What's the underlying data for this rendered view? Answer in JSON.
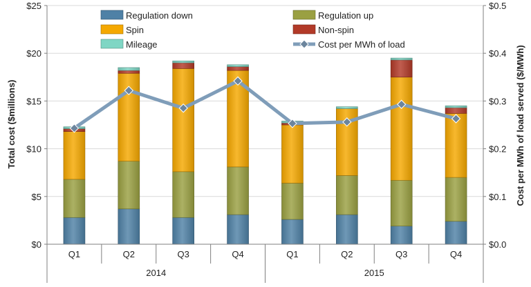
{
  "chart_data": {
    "type": "bar",
    "subtype": "stacked-bar-with-line-secondary-axis",
    "categories": [
      "Q1",
      "Q2",
      "Q3",
      "Q4",
      "Q1",
      "Q2",
      "Q3",
      "Q4"
    ],
    "groups": [
      {
        "label": "2014",
        "categories": [
          "Q1",
          "Q2",
          "Q3",
          "Q4"
        ]
      },
      {
        "label": "2015",
        "categories": [
          "Q1",
          "Q2",
          "Q3",
          "Q4"
        ]
      }
    ],
    "series": [
      {
        "name": "Regulation down",
        "color": "#4f81a6",
        "values": [
          2.8,
          3.7,
          2.8,
          3.1,
          2.6,
          3.1,
          1.9,
          2.4
        ]
      },
      {
        "name": "Regulation up",
        "color": "#9aa042",
        "values": [
          4.0,
          5.0,
          4.8,
          5.0,
          3.8,
          4.1,
          4.8,
          4.6
        ]
      },
      {
        "name": "Spin",
        "color": "#f5a800",
        "values": [
          5.0,
          9.2,
          10.8,
          10.1,
          6.1,
          7.0,
          10.8,
          6.7
        ]
      },
      {
        "name": "Non-spin",
        "color": "#b23a28",
        "values": [
          0.3,
          0.3,
          0.6,
          0.4,
          0.2,
          0.0,
          1.8,
          0.6
        ]
      },
      {
        "name": "Mileage",
        "color": "#7fd6c4",
        "values": [
          0.2,
          0.3,
          0.2,
          0.2,
          0.2,
          0.2,
          0.2,
          0.2
        ]
      }
    ],
    "line_series": {
      "name": "Cost per MWh of load",
      "axis": "right",
      "color": "#7f9db9",
      "values": [
        0.243,
        0.322,
        0.285,
        0.342,
        0.253,
        0.256,
        0.293,
        0.263
      ]
    },
    "ylabel": "Total cost ($millions)",
    "ylabel_right": "Cost per MWh of load served ($/MWh)",
    "ylim": [
      0,
      25
    ],
    "ylim_right": [
      0,
      0.5
    ],
    "yticks": [
      "$0",
      "$5",
      "$10",
      "$15",
      "$20",
      "$25"
    ],
    "yticks_right": [
      "$0.0",
      "$0.1",
      "$0.2",
      "$0.3",
      "$0.4",
      "$0.5"
    ],
    "grid": true,
    "legend_position": "top-inside"
  }
}
